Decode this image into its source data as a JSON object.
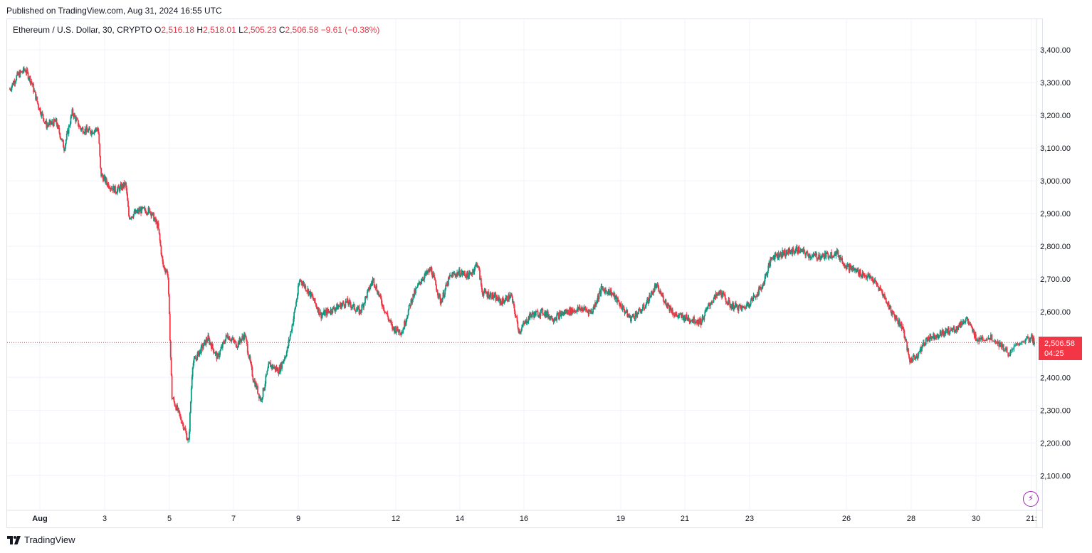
{
  "header": {
    "published": "Published on TradingView.com, Aug 31, 2024 16:55 UTC"
  },
  "legend": {
    "symbol": "Ethereum / U.S. Dollar, 30, CRYPTO",
    "o_label": "O",
    "o_value": "2,516.18",
    "h_label": "H",
    "h_value": "2,518.01",
    "l_label": "L",
    "l_value": "2,505.23",
    "c_label": "C",
    "c_value": "2,506.58",
    "change": "−9.61 (−0.38%)"
  },
  "price_tag": {
    "price": "2,506.58",
    "countdown": "04:25"
  },
  "brand": {
    "name": "TradingView"
  },
  "colors": {
    "up": "#089981",
    "down": "#f23645",
    "grid": "#f0f3fa",
    "axis_text": "#131722"
  },
  "icons": {
    "replay": "lightning-icon",
    "logo": "tradingview-logo-icon"
  },
  "chart_data": {
    "type": "candlestick",
    "symbol": "Ethereum / U.S. Dollar",
    "interval": "30",
    "ylim": [
      2020,
      3460
    ],
    "y_ticks": [
      "3,400.00",
      "3,300.00",
      "3,200.00",
      "3,100.00",
      "3,000.00",
      "2,900.00",
      "2,800.00",
      "2,700.00",
      "2,600.00",
      "2,500.00",
      "2,400.00",
      "2,300.00",
      "2,200.00",
      "2,100.00"
    ],
    "y_tick_values": [
      3400,
      3300,
      3200,
      3100,
      3000,
      2900,
      2800,
      2700,
      2600,
      2500,
      2400,
      2300,
      2200,
      2100
    ],
    "x_ticks": [
      {
        "label": "Aug",
        "day": 1.0
      },
      {
        "label": "3",
        "day": 3.0
      },
      {
        "label": "5",
        "day": 5.0
      },
      {
        "label": "7",
        "day": 7.0
      },
      {
        "label": "9",
        "day": 9.0
      },
      {
        "label": "12",
        "day": 12.0
      },
      {
        "label": "14",
        "day": 14.0
      },
      {
        "label": "16",
        "day": 16.0
      },
      {
        "label": "19",
        "day": 19.0
      },
      {
        "label": "21",
        "day": 21.0
      },
      {
        "label": "23",
        "day": 23.0
      },
      {
        "label": "26",
        "day": 26.0
      },
      {
        "label": "28",
        "day": 28.0
      },
      {
        "label": "30",
        "day": 30.0
      },
      {
        "label": "21:",
        "day": 31.0
      }
    ],
    "last_price": 2506.58,
    "grid": true,
    "price_path": [
      {
        "day": 0.08,
        "price": 3280
      },
      {
        "day": 0.3,
        "price": 3320
      },
      {
        "day": 0.55,
        "price": 3340
      },
      {
        "day": 0.75,
        "price": 3300
      },
      {
        "day": 0.95,
        "price": 3230
      },
      {
        "day": 1.2,
        "price": 3170
      },
      {
        "day": 1.5,
        "price": 3180
      },
      {
        "day": 1.75,
        "price": 3100
      },
      {
        "day": 2.0,
        "price": 3210
      },
      {
        "day": 2.25,
        "price": 3160
      },
      {
        "day": 2.55,
        "price": 3150
      },
      {
        "day": 2.8,
        "price": 3160
      },
      {
        "day": 2.88,
        "price": 3020
      },
      {
        "day": 3.1,
        "price": 2990
      },
      {
        "day": 3.35,
        "price": 2970
      },
      {
        "day": 3.65,
        "price": 2990
      },
      {
        "day": 3.75,
        "price": 2890
      },
      {
        "day": 4.1,
        "price": 2910
      },
      {
        "day": 4.4,
        "price": 2910
      },
      {
        "day": 4.65,
        "price": 2860
      },
      {
        "day": 4.8,
        "price": 2740
      },
      {
        "day": 4.95,
        "price": 2720
      },
      {
        "day": 5.08,
        "price": 2340
      },
      {
        "day": 5.25,
        "price": 2300
      },
      {
        "day": 5.45,
        "price": 2250
      },
      {
        "day": 5.6,
        "price": 2200
      },
      {
        "day": 5.72,
        "price": 2440
      },
      {
        "day": 5.95,
        "price": 2480
      },
      {
        "day": 6.2,
        "price": 2520
      },
      {
        "day": 6.5,
        "price": 2460
      },
      {
        "day": 6.8,
        "price": 2530
      },
      {
        "day": 7.1,
        "price": 2500
      },
      {
        "day": 7.35,
        "price": 2530
      },
      {
        "day": 7.6,
        "price": 2400
      },
      {
        "day": 7.85,
        "price": 2330
      },
      {
        "day": 8.1,
        "price": 2440
      },
      {
        "day": 8.4,
        "price": 2420
      },
      {
        "day": 8.65,
        "price": 2480
      },
      {
        "day": 8.85,
        "price": 2580
      },
      {
        "day": 9.05,
        "price": 2700
      },
      {
        "day": 9.4,
        "price": 2650
      },
      {
        "day": 9.7,
        "price": 2590
      },
      {
        "day": 10.1,
        "price": 2610
      },
      {
        "day": 10.5,
        "price": 2630
      },
      {
        "day": 10.9,
        "price": 2600
      },
      {
        "day": 11.3,
        "price": 2700
      },
      {
        "day": 11.6,
        "price": 2620
      },
      {
        "day": 11.9,
        "price": 2550
      },
      {
        "day": 12.2,
        "price": 2540
      },
      {
        "day": 12.5,
        "price": 2640
      },
      {
        "day": 12.8,
        "price": 2700
      },
      {
        "day": 13.1,
        "price": 2730
      },
      {
        "day": 13.4,
        "price": 2630
      },
      {
        "day": 13.7,
        "price": 2710
      },
      {
        "day": 14.0,
        "price": 2720
      },
      {
        "day": 14.3,
        "price": 2710
      },
      {
        "day": 14.55,
        "price": 2750
      },
      {
        "day": 14.7,
        "price": 2660
      },
      {
        "day": 15.0,
        "price": 2650
      },
      {
        "day": 15.3,
        "price": 2630
      },
      {
        "day": 15.6,
        "price": 2650
      },
      {
        "day": 15.85,
        "price": 2540
      },
      {
        "day": 16.2,
        "price": 2590
      },
      {
        "day": 16.6,
        "price": 2600
      },
      {
        "day": 16.9,
        "price": 2580
      },
      {
        "day": 17.3,
        "price": 2600
      },
      {
        "day": 17.8,
        "price": 2610
      },
      {
        "day": 18.1,
        "price": 2600
      },
      {
        "day": 18.4,
        "price": 2670
      },
      {
        "day": 18.7,
        "price": 2660
      },
      {
        "day": 19.0,
        "price": 2620
      },
      {
        "day": 19.3,
        "price": 2580
      },
      {
        "day": 19.7,
        "price": 2610
      },
      {
        "day": 20.1,
        "price": 2680
      },
      {
        "day": 20.4,
        "price": 2630
      },
      {
        "day": 20.7,
        "price": 2590
      },
      {
        "day": 21.1,
        "price": 2580
      },
      {
        "day": 21.5,
        "price": 2570
      },
      {
        "day": 21.8,
        "price": 2630
      },
      {
        "day": 22.1,
        "price": 2660
      },
      {
        "day": 22.4,
        "price": 2620
      },
      {
        "day": 22.8,
        "price": 2610
      },
      {
        "day": 23.1,
        "price": 2640
      },
      {
        "day": 23.4,
        "price": 2680
      },
      {
        "day": 23.7,
        "price": 2770
      },
      {
        "day": 24.1,
        "price": 2780
      },
      {
        "day": 24.5,
        "price": 2790
      },
      {
        "day": 24.9,
        "price": 2770
      },
      {
        "day": 25.3,
        "price": 2770
      },
      {
        "day": 25.7,
        "price": 2780
      },
      {
        "day": 26.0,
        "price": 2740
      },
      {
        "day": 26.4,
        "price": 2720
      },
      {
        "day": 26.8,
        "price": 2700
      },
      {
        "day": 27.1,
        "price": 2660
      },
      {
        "day": 27.4,
        "price": 2600
      },
      {
        "day": 27.75,
        "price": 2550
      },
      {
        "day": 27.95,
        "price": 2450
      },
      {
        "day": 28.2,
        "price": 2470
      },
      {
        "day": 28.5,
        "price": 2520
      },
      {
        "day": 28.8,
        "price": 2530
      },
      {
        "day": 29.1,
        "price": 2540
      },
      {
        "day": 29.4,
        "price": 2550
      },
      {
        "day": 29.7,
        "price": 2580
      },
      {
        "day": 30.0,
        "price": 2520
      },
      {
        "day": 30.3,
        "price": 2520
      },
      {
        "day": 30.5,
        "price": 2490
      },
      {
        "day": 30.6,
        "price": 2470
      },
      {
        "day": 30.8,
        "price": 2510
      },
      {
        "day": 31.0,
        "price": 2520
      },
      {
        "day": 31.3,
        "price": 2506.58
      }
    ]
  }
}
